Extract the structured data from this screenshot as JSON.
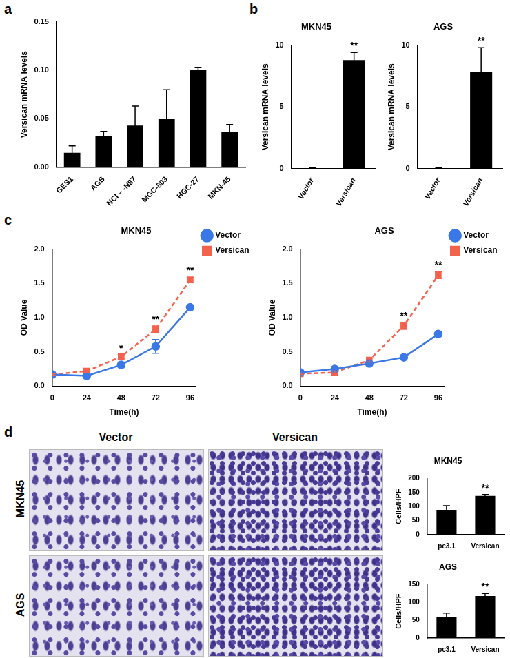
{
  "panel_labels": [
    "a",
    "b",
    "c",
    "d"
  ],
  "images": {
    "columns": [
      "Vector",
      "Versican"
    ],
    "rows": [
      "MKN45",
      "AGS"
    ]
  },
  "chart_data": [
    {
      "type": "bar",
      "y_label": "Versican mRNA levels",
      "categories": [
        "GES1",
        "AGS",
        "NCI – -N87",
        "MGC-803",
        "HGC-27",
        "MKN-45"
      ],
      "values": [
        0.015,
        0.032,
        0.043,
        0.05,
        0.1,
        0.036
      ],
      "errors": [
        0.007,
        0.005,
        0.02,
        0.03,
        0.003,
        0.008
      ],
      "color": "#000000",
      "ylim": [
        0,
        0.15
      ],
      "yticks": [
        {
          "value": 0,
          "label": "0.00"
        },
        {
          "value": 0.05,
          "label": "0.05"
        },
        {
          "value": 0.1,
          "label": "0.10"
        },
        {
          "value": 0.15,
          "label": "0.15"
        }
      ],
      "grid": false
    },
    {
      "type": "bar",
      "title": "MKN45",
      "y_label": "Versican mRNA levels",
      "categories": [
        "Vector",
        "Versican"
      ],
      "values": [
        0.05,
        8.8
      ],
      "errors": [
        0.02,
        0.6
      ],
      "color": "#000000",
      "ylim": [
        0,
        10
      ],
      "yticks": [
        0,
        5,
        10
      ],
      "annotations": [
        {
          "category": "Versican",
          "text": "**"
        }
      ],
      "grid": false
    },
    {
      "type": "bar",
      "title": "AGS",
      "y_label": "Versican mRNA levels",
      "categories": [
        "Vector",
        "Versican"
      ],
      "values": [
        0.05,
        7.8
      ],
      "errors": [
        0.02,
        2.0
      ],
      "color": "#000000",
      "ylim": [
        0,
        10
      ],
      "yticks": [
        0,
        5,
        10
      ],
      "annotations": [
        {
          "category": "Versican",
          "text": "**"
        }
      ],
      "grid": false
    },
    {
      "type": "line",
      "title": "MKN45",
      "x_label": "Time(h)",
      "y_label": "OD Value",
      "x": [
        0,
        24,
        48,
        72,
        96
      ],
      "series": [
        {
          "name": "Vector",
          "color": "#3b78e7",
          "marker": "circle",
          "line_style": "solid",
          "values": [
            0.17,
            0.15,
            0.31,
            0.58,
            1.15
          ],
          "errors": [
            0.01,
            0.02,
            0.04,
            0.1,
            0.03
          ]
        },
        {
          "name": "Versican",
          "color": "#f4614d",
          "marker": "square",
          "line_style": "dashed",
          "values": [
            0.17,
            0.22,
            0.43,
            0.83,
            1.55
          ],
          "errors": [
            0.01,
            0.02,
            0.03,
            0.05,
            0.04
          ]
        }
      ],
      "xlim": [
        0,
        100
      ],
      "xticks": [
        0,
        24,
        48,
        72,
        96
      ],
      "ylim": [
        0,
        2
      ],
      "yticks": [
        {
          "value": 0,
          "label": "0.0"
        },
        {
          "value": 0.5,
          "label": "0.5"
        },
        {
          "value": 1,
          "label": "1.0"
        },
        {
          "value": 1.5,
          "label": "1.5"
        },
        {
          "value": 2,
          "label": "2.0"
        }
      ],
      "legend": "right",
      "annotations": [
        {
          "x": 48,
          "text": "*"
        },
        {
          "x": 72,
          "text": "**"
        },
        {
          "x": 96,
          "text": "**"
        }
      ],
      "grid": false
    },
    {
      "type": "line",
      "title": "AGS",
      "x_label": "Time(h)",
      "y_label": "OD Value",
      "x": [
        0,
        24,
        48,
        72,
        96
      ],
      "series": [
        {
          "name": "Vector",
          "color": "#3b78e7",
          "marker": "circle",
          "line_style": "solid",
          "values": [
            0.2,
            0.25,
            0.33,
            0.42,
            0.76
          ],
          "errors": [
            0.01,
            0.03,
            0.02,
            0.03,
            0.03
          ]
        },
        {
          "name": "Versican",
          "color": "#f4614d",
          "marker": "square",
          "line_style": "dashed",
          "values": [
            0.18,
            0.2,
            0.38,
            0.88,
            1.62
          ],
          "errors": [
            0.01,
            0.02,
            0.03,
            0.05,
            0.05
          ]
        }
      ],
      "xlim": [
        0,
        100
      ],
      "xticks": [
        0,
        24,
        48,
        72,
        96
      ],
      "ylim": [
        0,
        2
      ],
      "yticks": [
        {
          "value": 0,
          "label": "0.0"
        },
        {
          "value": 0.5,
          "label": "0.5"
        },
        {
          "value": 1,
          "label": "1.0"
        },
        {
          "value": 1.5,
          "label": "1.5"
        },
        {
          "value": 2,
          "label": "2.0"
        }
      ],
      "legend": "right",
      "annotations": [
        {
          "x": 72,
          "text": "**"
        },
        {
          "x": 96,
          "text": "**"
        }
      ],
      "grid": false
    },
    {
      "type": "bar",
      "title": "MKN45",
      "y_label": "Cells/HPF",
      "categories": [
        "pc3.1",
        "Versican"
      ],
      "values": [
        88,
        138
      ],
      "errors": [
        15,
        5
      ],
      "color": "#000000",
      "ylim": [
        0,
        200
      ],
      "yticks": [
        0,
        50,
        100,
        150,
        200
      ],
      "annotations": [
        {
          "category": "Versican",
          "text": "**"
        }
      ],
      "grid": false
    },
    {
      "type": "bar",
      "title": "AGS",
      "y_label": "Cells/HPF",
      "categories": [
        "pc3.1",
        "Versican"
      ],
      "values": [
        60,
        118
      ],
      "errors": [
        10,
        7
      ],
      "color": "#000000",
      "ylim": [
        0,
        150
      ],
      "yticks": [
        0,
        50,
        100,
        150
      ],
      "annotations": [
        {
          "category": "Versican",
          "text": "**"
        }
      ],
      "grid": false
    }
  ]
}
